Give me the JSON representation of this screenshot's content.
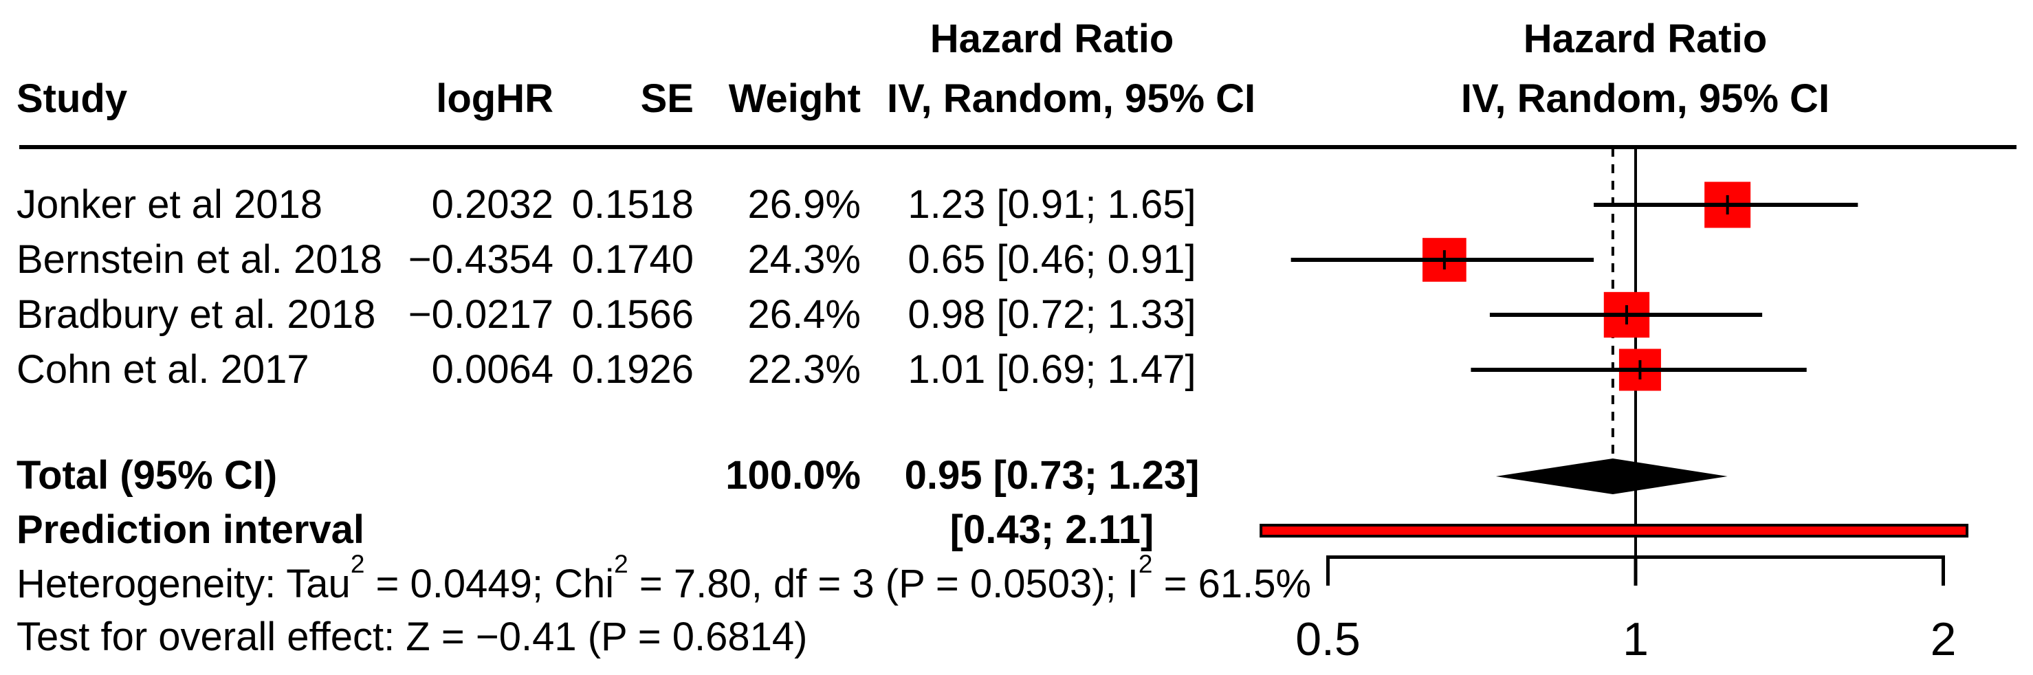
{
  "table": {
    "headers": {
      "study": "Study",
      "loghr": "logHR",
      "se": "SE",
      "weight": "Weight",
      "effect_col_line1": "Hazard Ratio",
      "effect_col_line2": "IV, Random, 95% CI",
      "plot_col_line1": "Hazard Ratio",
      "plot_col_line2": "IV, Random, 95% CI"
    },
    "rows": [
      {
        "study": "Jonker et al 2018",
        "loghr": "0.2032",
        "se": "0.1518",
        "weight": "26.9%",
        "ci": "1.23 [0.91; 1.65]"
      },
      {
        "study": "Bernstein et al. 2018",
        "loghr": "−0.4354",
        "se": "0.1740",
        "weight": "24.3%",
        "ci": "0.65 [0.46; 0.91]"
      },
      {
        "study": "Bradbury et al. 2018",
        "loghr": "−0.0217",
        "se": "0.1566",
        "weight": "26.4%",
        "ci": "0.98 [0.72; 1.33]"
      },
      {
        "study": "Cohn et al. 2017",
        "loghr": "0.0064",
        "se": "0.1926",
        "weight": "22.3%",
        "ci": "1.01 [0.69; 1.47]"
      }
    ],
    "total": {
      "label": "Total (95% CI)",
      "weight": "100.0%",
      "ci": "0.95 [0.73; 1.23]"
    },
    "prediction": {
      "label": "Prediction interval",
      "ci": "[0.43; 2.11]"
    },
    "heterogeneity": {
      "p1": "Heterogeneity: Tau",
      "s1": "2",
      "p2": " = 0.0449; Chi",
      "s2": "2",
      "p3": " = 7.80, df = 3 (P = 0.0503); I",
      "s3": "2",
      "p4": " = 61.5%"
    },
    "overall_test": "Test for overall effect: Z = −0.41 (P = 0.6814)"
  },
  "chart_data": {
    "type": "forest",
    "effect_measure": "Hazard Ratio",
    "model": "IV, Random, 95% CI",
    "x_axis": {
      "scale": "log",
      "ticks": [
        0.5,
        1,
        2
      ],
      "tick_labels": [
        "0.5",
        "1",
        "2"
      ],
      "reference_line": 1,
      "pooled_effect_line": 0.95
    },
    "studies": [
      {
        "name": "Jonker et al 2018",
        "logHR": 0.2032,
        "SE": 0.1518,
        "weight_pct": 26.9,
        "hr": 1.23,
        "ci_low": 0.91,
        "ci_high": 1.65
      },
      {
        "name": "Bernstein et al. 2018",
        "logHR": -0.4354,
        "SE": 0.174,
        "weight_pct": 24.3,
        "hr": 0.65,
        "ci_low": 0.46,
        "ci_high": 0.91
      },
      {
        "name": "Bradbury et al. 2018",
        "logHR": -0.0217,
        "SE": 0.1566,
        "weight_pct": 26.4,
        "hr": 0.98,
        "ci_low": 0.72,
        "ci_high": 1.33
      },
      {
        "name": "Cohn et al. 2017",
        "logHR": 0.0064,
        "SE": 0.1926,
        "weight_pct": 22.3,
        "hr": 1.01,
        "ci_low": 0.69,
        "ci_high": 1.47
      }
    ],
    "total": {
      "hr": 0.95,
      "ci_low": 0.73,
      "ci_high": 1.23,
      "weight_pct": 100.0
    },
    "prediction_interval": {
      "ci_low": 0.43,
      "ci_high": 2.11
    },
    "heterogeneity_stats": {
      "tau2": 0.0449,
      "chi2": 7.8,
      "df": 3,
      "p_het": 0.0503,
      "i2_pct": 61.5
    },
    "overall_effect": {
      "z": -0.41,
      "p": 0.6814
    },
    "colors": {
      "square": "#ff0000",
      "prediction_bar": "#ff0000",
      "diamond": "#000000",
      "line": "#000000"
    }
  }
}
